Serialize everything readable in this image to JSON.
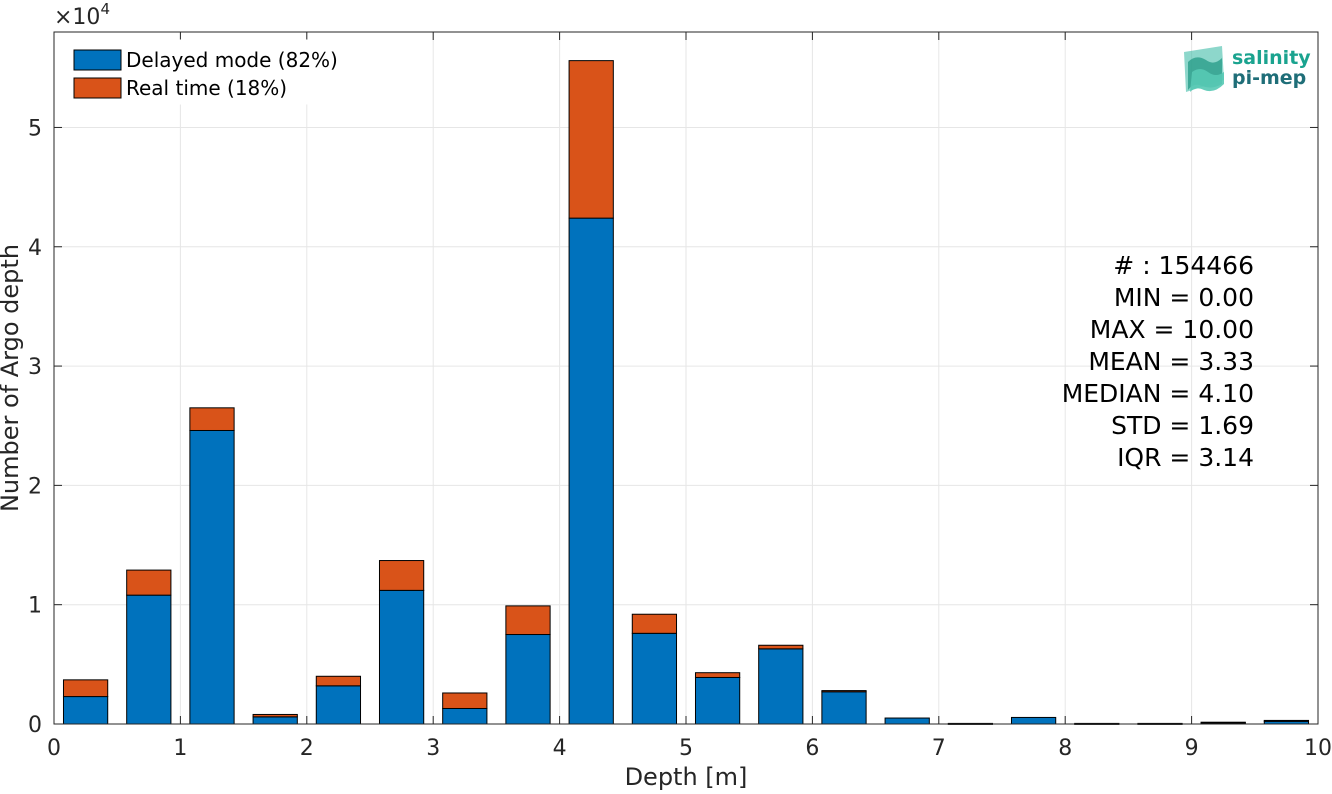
{
  "chart_data": {
    "type": "bar",
    "stacked": true,
    "xlabel": "Depth [m]",
    "ylabel": "Number of Argo depth",
    "y_multiplier_label": "×10",
    "y_multiplier_exponent": "4",
    "xlim": [
      0,
      10
    ],
    "ylim": [
      0,
      58000
    ],
    "x_ticks": [
      0,
      1,
      2,
      3,
      4,
      5,
      6,
      7,
      8,
      9,
      10
    ],
    "y_ticks": [
      0,
      1,
      2,
      3,
      4,
      5
    ],
    "y_tick_scale": 10000,
    "grid": true,
    "legend_position": "top-left",
    "bin_width": 0.5,
    "bar_width_fraction": 0.7,
    "bin_centers": [
      0.25,
      0.75,
      1.25,
      1.75,
      2.25,
      2.75,
      3.25,
      3.75,
      4.25,
      4.75,
      5.25,
      5.75,
      6.25,
      6.75,
      7.25,
      7.75,
      8.25,
      8.75,
      9.25,
      9.75
    ],
    "series": [
      {
        "name": "Delayed mode (82%)",
        "color": "#0072BD",
        "values": [
          2300,
          10800,
          24600,
          600,
          3200,
          11200,
          1300,
          7500,
          42400,
          7600,
          3900,
          6300,
          2700,
          500,
          50,
          550,
          50,
          50,
          100,
          250
        ]
      },
      {
        "name": "Real time (18%)",
        "color": "#D95319",
        "values": [
          1400,
          2100,
          1900,
          200,
          800,
          2500,
          1300,
          2400,
          13200,
          1600,
          400,
          300,
          100,
          0,
          0,
          0,
          0,
          0,
          50,
          50
        ]
      }
    ],
    "stats": [
      "# : 154466",
      "MIN = 0.00",
      "MAX =  10.00",
      "MEAN = 3.33",
      "MEDIAN = 4.10",
      "STD = 1.69",
      "IQR = 3.14"
    ]
  },
  "logo": {
    "line1": "salinity",
    "line2": "pi-mep",
    "color": "#1aa38f"
  }
}
